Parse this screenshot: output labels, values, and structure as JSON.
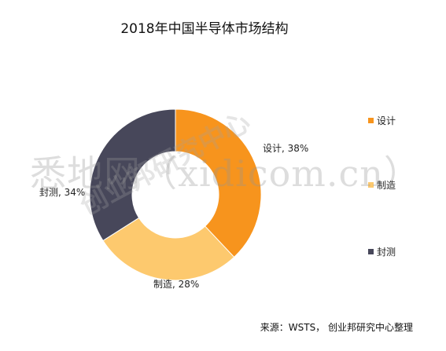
{
  "chart_data": {
    "type": "pie",
    "title": "2018年中国半导体市场结构",
    "slices": [
      {
        "label": "设计",
        "value": 38,
        "display": "设计, 38%",
        "color": "#f7941d"
      },
      {
        "label": "制造",
        "value": 28,
        "display": "制造, 28%",
        "color": "#fdc96e"
      },
      {
        "label": "封测",
        "value": 34,
        "display": "封测, 34%",
        "color": "#47475a"
      }
    ],
    "donut": true,
    "legend_position": "right"
  },
  "legend": [
    {
      "label": "设计",
      "color": "#f7941d"
    },
    {
      "label": "制造",
      "color": "#fdc96e"
    },
    {
      "label": "封测",
      "color": "#47475a"
    }
  ],
  "source": "来源：WSTS， 创业邦研究中心整理",
  "watermark": {
    "main": "悉地网（xidicom.cn）",
    "sub": "创业邦研究中心"
  }
}
